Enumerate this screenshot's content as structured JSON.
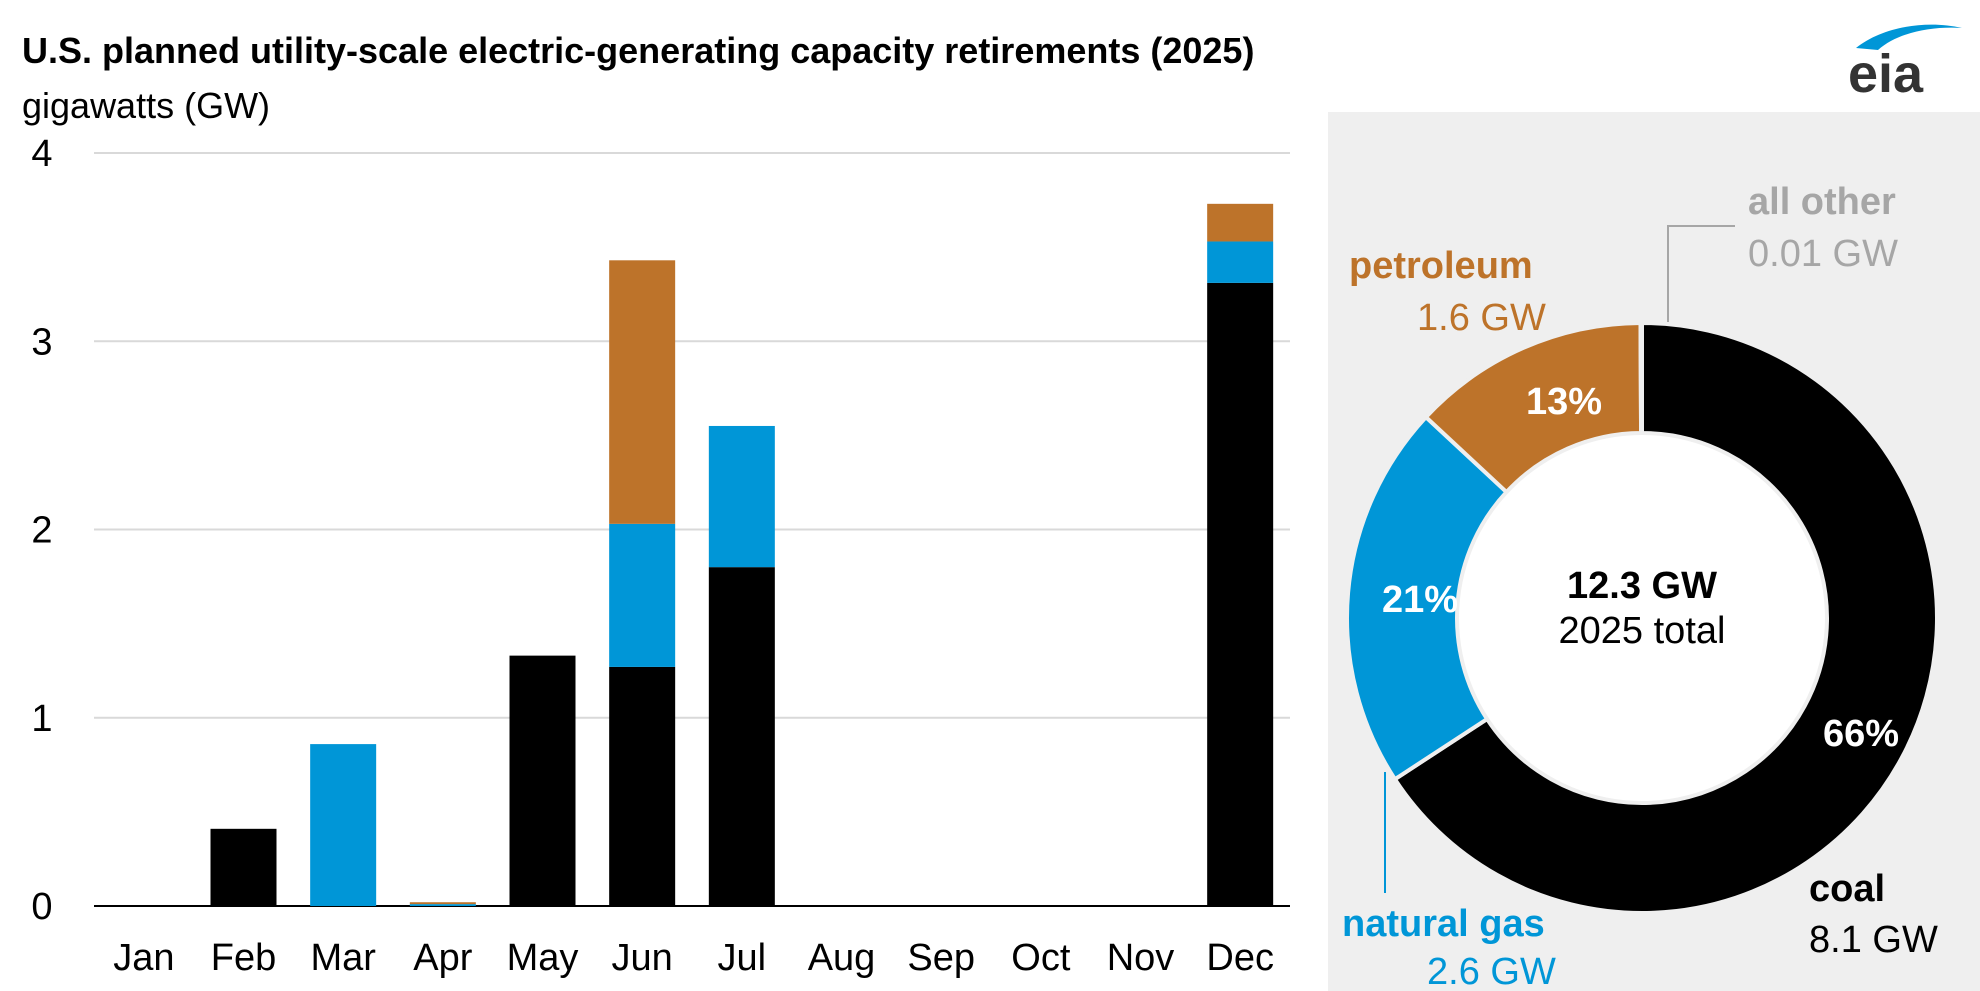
{
  "header": {
    "title": "U.S. planned utility-scale electric-generating capacity retirements (2025)",
    "subtitle": "gigawatts (GW)"
  },
  "logo": {
    "text": "eia",
    "icon": "eia-swoosh-icon"
  },
  "colors": {
    "coal": "#000000",
    "natural_gas": "#0096d7",
    "petroleum": "#bd732a",
    "all_other": "#a6a6a6",
    "grid": "#d9d9d9",
    "panel": "#efefef"
  },
  "chart_data": [
    {
      "type": "bar",
      "stacked": true,
      "categories": [
        "Jan",
        "Feb",
        "Mar",
        "Apr",
        "May",
        "Jun",
        "Jul",
        "Aug",
        "Sep",
        "Oct",
        "Nov",
        "Dec"
      ],
      "series": [
        {
          "key": "coal",
          "values": [
            0,
            0.41,
            0,
            0,
            1.33,
            1.27,
            1.8,
            0,
            0,
            0,
            0,
            3.31
          ]
        },
        {
          "key": "natural_gas",
          "values": [
            0,
            0,
            0.86,
            0.01,
            0,
            0.76,
            0.75,
            0,
            0,
            0,
            0,
            0.22
          ]
        },
        {
          "key": "petroleum",
          "values": [
            0,
            0,
            0,
            0.01,
            0,
            1.4,
            0,
            0,
            0,
            0,
            0,
            0.2
          ]
        }
      ],
      "ylim": [
        0,
        4
      ],
      "yticks": [
        "0",
        "1",
        "2",
        "3",
        "4"
      ],
      "grid": true
    },
    {
      "type": "pie",
      "donut": true,
      "center_label": {
        "value": "12.3 GW",
        "caption": "2025 total"
      },
      "slices": [
        {
          "key": "coal",
          "name": "coal",
          "amount": "8.1 GW",
          "value": 8.1,
          "percent_label": "66%"
        },
        {
          "key": "natural_gas",
          "name": "natural gas",
          "amount": "2.6 GW",
          "value": 2.6,
          "percent_label": "21%"
        },
        {
          "key": "petroleum",
          "name": "petroleum",
          "amount": "1.6 GW",
          "value": 1.6,
          "percent_label": "13%"
        },
        {
          "key": "all_other",
          "name": "all other",
          "amount": "0.01 GW",
          "value": 0.01,
          "percent_label": ""
        }
      ]
    }
  ]
}
